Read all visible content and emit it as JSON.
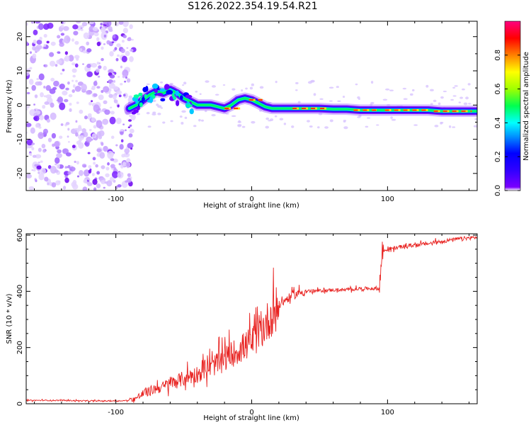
{
  "figure": {
    "title": "S126.2022.354.19.54.R21"
  },
  "chart_data": [
    {
      "type": "heatmap",
      "title": "",
      "xlabel": "Height of straight line (km)",
      "ylabel": "Frequency (Hz)",
      "xlim": [
        -166,
        166
      ],
      "ylim": [
        -25,
        24.5
      ],
      "x_ticks": [
        -100,
        0,
        100
      ],
      "y_ticks": [
        -20,
        -10,
        0,
        10,
        20
      ],
      "colorbar": {
        "label": "Normalized spectral amplitude",
        "range": [
          0,
          1
        ],
        "ticks": [
          0.0,
          0.2,
          0.4,
          0.6,
          0.8
        ],
        "colormap": [
          "#ffffff",
          "#6a00ff",
          "#0000ff",
          "#00c8ff",
          "#00ff60",
          "#c8ff00",
          "#ffff00",
          "#ff8000",
          "#ff0000",
          "#ff0080"
        ]
      },
      "ridge_frequency": {
        "x": [
          -90,
          -85,
          -80,
          -75,
          -70,
          -65,
          -60,
          -55,
          -50,
          -45,
          -40,
          -35,
          -30,
          -25,
          -20,
          -15,
          -10,
          -5,
          0,
          5,
          10,
          15,
          20,
          30,
          40,
          50,
          60,
          70,
          80,
          90,
          100,
          110,
          120,
          130,
          140,
          150,
          160,
          166
        ],
        "y": [
          -1,
          0,
          1.5,
          3,
          4,
          3.5,
          4.5,
          3.5,
          2,
          1,
          0,
          0,
          0,
          -0.5,
          -1,
          0,
          1.5,
          2,
          1.5,
          0.5,
          -0.5,
          -1,
          -1,
          -1,
          -1,
          -1,
          -1.2,
          -1.2,
          -1.5,
          -1.5,
          -1.5,
          -1.5,
          -1.5,
          -1.5,
          -1.8,
          -1.8,
          -1.8,
          -1.8
        ]
      },
      "noise_region_x": [
        -166,
        -90
      ]
    },
    {
      "type": "line",
      "title": "",
      "xlabel": "Height of straight line (km)",
      "ylabel": "SNR (10 * v/v)",
      "xlim": [
        -166,
        166
      ],
      "ylim": [
        0,
        605
      ],
      "x_ticks": [
        -100,
        0,
        100
      ],
      "y_ticks": [
        0,
        200,
        400,
        600
      ],
      "color": "#e8211f",
      "series": [
        {
          "x": [
            -166,
            -140,
            -120,
            -100,
            -90,
            -85,
            -80,
            -75,
            -70,
            -65,
            -60,
            -55,
            -50,
            -45,
            -40,
            -35,
            -30,
            -25,
            -20,
            -15,
            -10,
            -5,
            0,
            5,
            10,
            15,
            20,
            25,
            30,
            35,
            40,
            50,
            60,
            70,
            80,
            90,
            94,
            96,
            100,
            110,
            120,
            130,
            140,
            150,
            160,
            166
          ],
          "values": [
            12,
            12,
            10,
            10,
            12,
            20,
            35,
            45,
            55,
            60,
            75,
            80,
            90,
            100,
            105,
            120,
            130,
            145,
            160,
            175,
            190,
            205,
            220,
            245,
            280,
            320,
            350,
            370,
            385,
            395,
            400,
            402,
            405,
            405,
            410,
            410,
            410,
            540,
            550,
            558,
            565,
            570,
            578,
            585,
            590,
            592
          ]
        }
      ]
    }
  ]
}
